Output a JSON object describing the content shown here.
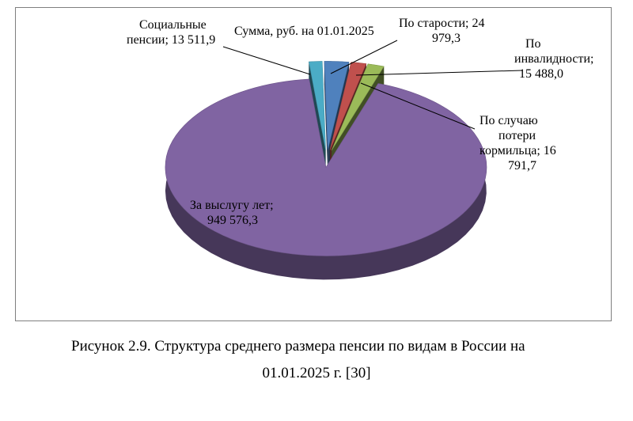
{
  "chart_data": {
    "type": "pie",
    "style": "3d-exploded",
    "title": "Сумма, руб. на 01.01.2025",
    "series": [
      {
        "name": "Сумма, руб. на 01.01.2025",
        "slices": [
          {
            "label_lines": [
              "За выслугу лет;",
              "949 576,3"
            ],
            "value": 949576.3,
            "color": "#8064a2"
          },
          {
            "label_lines": [
              "Социальные",
              "пенсии; 13 511,9"
            ],
            "value": 13511.9,
            "color": "#4bacc6"
          },
          {
            "label_lines": [
              "По старости; 24",
              "979,3"
            ],
            "value": 24979.3,
            "color": "#4f81bd"
          },
          {
            "label_lines": [
              "По",
              "инвалидности;",
              "15 488,0"
            ],
            "value": 15488.0,
            "color": "#c0504d"
          },
          {
            "label_lines": [
              "По случаю",
              "потери",
              "кормильца; 16",
              "791,7"
            ],
            "value": 16791.7,
            "color": "#9bbb59"
          }
        ]
      }
    ],
    "legend": "none"
  },
  "caption": {
    "line1": "Рисунок 2.9. Структура среднего размера пенсии по видам в России на",
    "line2": "01.01.2025 г. [30]"
  }
}
